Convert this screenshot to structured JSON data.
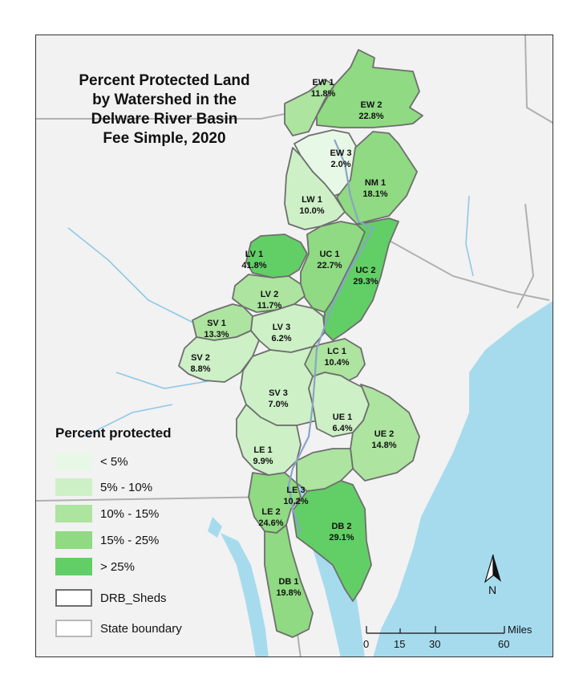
{
  "title_lines": [
    "Percent Protected Land",
    "by Watershed in the",
    "Delware River Basin",
    "Fee Simple, 2020"
  ],
  "legend": {
    "title": "Percent protected",
    "classes": [
      {
        "label": "< 5%",
        "color": "#e8f8e6"
      },
      {
        "label": "5% - 10%",
        "color": "#cdf0c6"
      },
      {
        "label": "10% - 15%",
        "color": "#ace4a0"
      },
      {
        "label": "15% - 25%",
        "color": "#8fda82"
      },
      {
        "label": "> 25%",
        "color": "#62cf66"
      }
    ],
    "sheds_label": "DRB_Sheds",
    "state_label": "State boundary"
  },
  "watersheds": [
    {
      "name": "EW 1",
      "value": "11.8%"
    },
    {
      "name": "EW 2",
      "value": "22.8%"
    },
    {
      "name": "EW 3",
      "value": "2.0%"
    },
    {
      "name": "NM 1",
      "value": "18.1%"
    },
    {
      "name": "LW 1",
      "value": "10.0%"
    },
    {
      "name": "LV 1",
      "value": "41.8%"
    },
    {
      "name": "UC 1",
      "value": "22.7%"
    },
    {
      "name": "UC 2",
      "value": "29.3%"
    },
    {
      "name": "LV 2",
      "value": "11.7%"
    },
    {
      "name": "SV 1",
      "value": "13.3%"
    },
    {
      "name": "LV 3",
      "value": "6.2%"
    },
    {
      "name": "SV 2",
      "value": "8.8%"
    },
    {
      "name": "LC 1",
      "value": "10.4%"
    },
    {
      "name": "SV 3",
      "value": "7.0%"
    },
    {
      "name": "UE 1",
      "value": "6.4%"
    },
    {
      "name": "UE 2",
      "value": "14.8%"
    },
    {
      "name": "LE 1",
      "value": "9.9%"
    },
    {
      "name": "LE 3",
      "value": "10.2%"
    },
    {
      "name": "LE 2",
      "value": "24.6%"
    },
    {
      "name": "DB 2",
      "value": "29.1%"
    },
    {
      "name": "DB 1",
      "value": "19.8%"
    }
  ],
  "scale": {
    "ticks": [
      "0",
      "15",
      "30",
      "60"
    ],
    "unit": "Miles"
  },
  "north_label": "N",
  "colors": {
    "water": "#a6dbee",
    "land": "#f2f2f2",
    "river": "#8aa4c8",
    "state_line": "#b0b0b0",
    "shed_line": "#6e6e6e"
  }
}
